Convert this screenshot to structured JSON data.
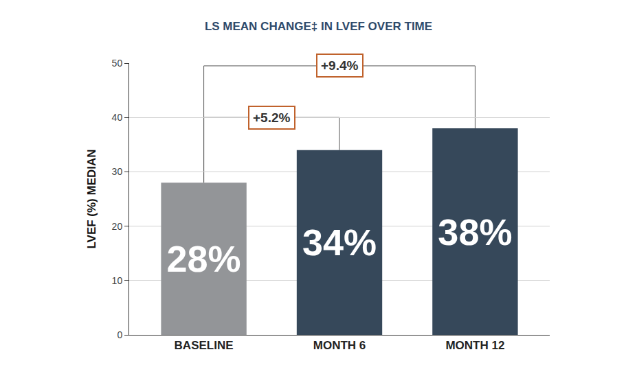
{
  "chart_data": {
    "type": "bar",
    "title": "LS MEAN CHANGE‡ IN LVEF OVER TIME",
    "y_label": "LVEF (%) MEDIAN",
    "categories": [
      "BASELINE",
      "MONTH 6",
      "MONTH 12"
    ],
    "values": [
      28,
      34,
      38
    ],
    "value_labels": [
      "28%",
      "34%",
      "38%"
    ],
    "colors": [
      "#939598",
      "#36485a",
      "#36485a"
    ],
    "data_labels": true,
    "ylim": [
      0,
      50
    ],
    "yticks": [
      0,
      10,
      20,
      30,
      40,
      50
    ],
    "grid": true,
    "annotations": [
      {
        "text": "+5.2%",
        "from": "BASELINE",
        "to": "MONTH 6"
      },
      {
        "text": "+9.4%",
        "from": "BASELINE",
        "to": "MONTH 12"
      }
    ]
  }
}
